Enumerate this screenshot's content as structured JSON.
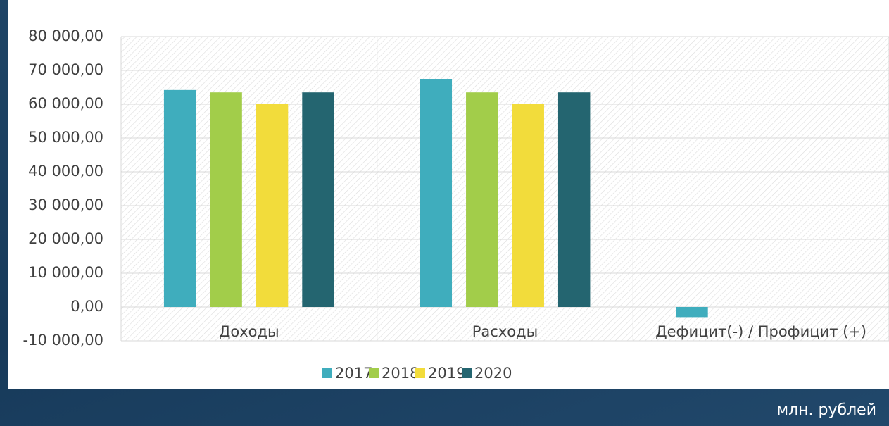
{
  "chart_data": {
    "type": "bar",
    "categories": [
      "Доходы",
      "Расходы",
      "Дефицит(-) / Профицит (+)"
    ],
    "series": [
      {
        "name": "2017",
        "color": "#3fadbd",
        "values": [
          64200,
          67500,
          -3000
        ]
      },
      {
        "name": "2018",
        "color": "#a2cd4a",
        "values": [
          63500,
          63500,
          0
        ]
      },
      {
        "name": "2019",
        "color": "#f2dc3b",
        "values": [
          60200,
          60200,
          0
        ]
      },
      {
        "name": "2020",
        "color": "#246570",
        "values": [
          63500,
          63500,
          0
        ]
      }
    ],
    "ylim": [
      -10000,
      80000
    ],
    "yticks": [
      {
        "value": -10000,
        "label": "-10 000,00"
      },
      {
        "value": 0,
        "label": "0,00"
      },
      {
        "value": 10000,
        "label": "10 000,00"
      },
      {
        "value": 20000,
        "label": "20 000,00"
      },
      {
        "value": 30000,
        "label": "30 000,00"
      },
      {
        "value": 40000,
        "label": "40 000,00"
      },
      {
        "value": 50000,
        "label": "50 000,00"
      },
      {
        "value": 60000,
        "label": "60 000,00"
      },
      {
        "value": 70000,
        "label": "70 000,00"
      },
      {
        "value": 80000,
        "label": "80 000,00"
      }
    ],
    "grid": true,
    "legend": "bottom",
    "note": "млн. рублей"
  }
}
